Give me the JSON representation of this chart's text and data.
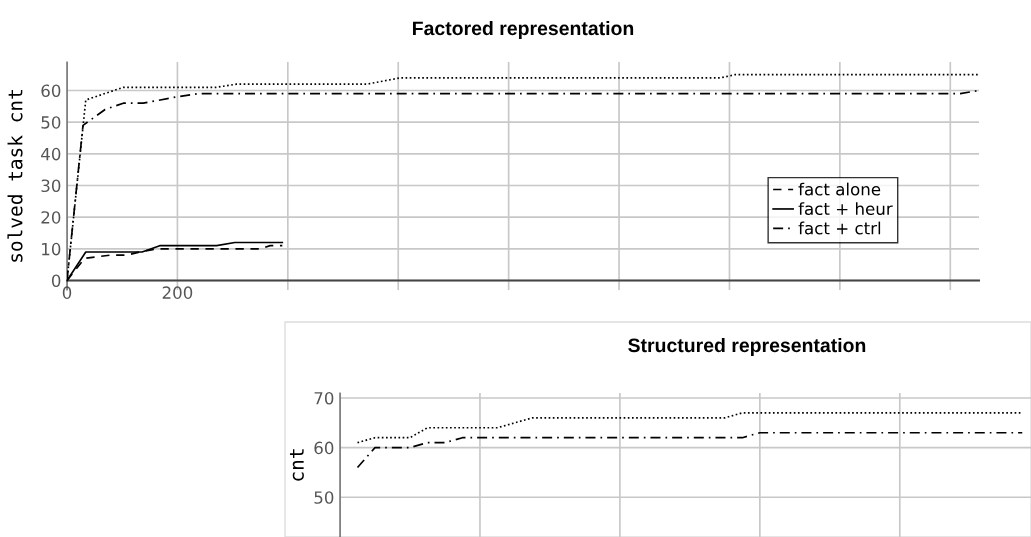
{
  "chart_data": [
    {
      "type": "line",
      "title": "Factored representation",
      "ylabel": "solved task cnt",
      "xlim": [
        0,
        1652
      ],
      "ylim": [
        -3,
        69
      ],
      "xticks": [
        0,
        200,
        {
          "value": 400,
          "label": null
        },
        {
          "value": 600,
          "label": null
        },
        {
          "value": 800,
          "label": null
        },
        {
          "value": 1000,
          "label": null
        },
        {
          "value": 1200,
          "label": null
        },
        {
          "value": 1400,
          "label": null
        },
        {
          "value": 1600,
          "label": null
        }
      ],
      "yticks": [
        0,
        10,
        20,
        30,
        40,
        50,
        60
      ],
      "grid": true,
      "legend": "center right",
      "series": [
        {
          "name": "fact alone",
          "color": "#000000",
          "line_style": "dashed",
          "x": [
            0,
            32,
            78,
            108,
            132,
            163,
            350,
            368,
            390
          ],
          "values": [
            0,
            7,
            8,
            8,
            9,
            10,
            10,
            11,
            11
          ]
        },
        {
          "name": "fact + heur",
          "color": "#000000",
          "line_style": "solid",
          "x": [
            0,
            34,
            136,
            168,
            271,
            304,
            390
          ],
          "values": [
            0,
            9,
            9,
            11,
            11,
            12,
            12
          ]
        },
        {
          "name": "fact + ctrl",
          "color": "#000000",
          "line_style": "dashdot",
          "x": [
            0,
            29,
            69,
            102,
            138,
            199,
            237,
            1618,
            1652
          ],
          "values": [
            0,
            49,
            54,
            56,
            56,
            58,
            59,
            59,
            60
          ]
        },
        {
          "color": "#000000",
          "line_style": "dotted",
          "x": [
            0,
            34,
            102,
            270,
            307,
            543,
            604,
            1184,
            1210,
            1652
          ],
          "values": [
            0,
            57,
            61,
            61,
            62,
            62,
            64,
            64,
            65,
            65
          ]
        }
      ]
    },
    {
      "type": "line",
      "title": "Structured representation",
      "ylabel": "cnt",
      "ylim": [
        42,
        71
      ],
      "yticks": [
        50,
        60,
        70
      ],
      "grid": true,
      "tick_labels": "y",
      "categories": [
        null,
        null,
        null,
        null,
        null,
        null,
        null,
        null,
        null,
        null,
        null,
        null,
        null,
        null,
        null,
        null,
        null,
        null,
        null,
        null,
        null,
        null,
        null,
        null,
        null,
        null,
        null,
        null,
        null,
        null,
        null,
        null,
        null,
        null,
        null,
        null,
        null,
        null,
        null,
        null
      ],
      "series": [
        {
          "color": "#000000",
          "line_style": "dashdot",
          "values": [
            null,
            56,
            60,
            60,
            60,
            61,
            61,
            62,
            62,
            62,
            62,
            62,
            62,
            62,
            62,
            62,
            62,
            62,
            62,
            62,
            62,
            62,
            62,
            62,
            63,
            63,
            63,
            63,
            63,
            63,
            63,
            63,
            63,
            63,
            63,
            63,
            63,
            63,
            63,
            63
          ]
        },
        {
          "color": "#000000",
          "line_style": "dotted",
          "values": [
            null,
            61,
            62,
            62,
            62,
            64,
            64,
            64,
            64,
            64,
            65,
            66,
            66,
            66,
            66,
            66,
            66,
            66,
            66,
            66,
            66,
            66,
            66,
            67,
            67,
            67,
            67,
            67,
            67,
            67,
            67,
            67,
            67,
            67,
            67,
            67,
            67,
            67,
            67,
            67
          ]
        }
      ]
    }
  ]
}
